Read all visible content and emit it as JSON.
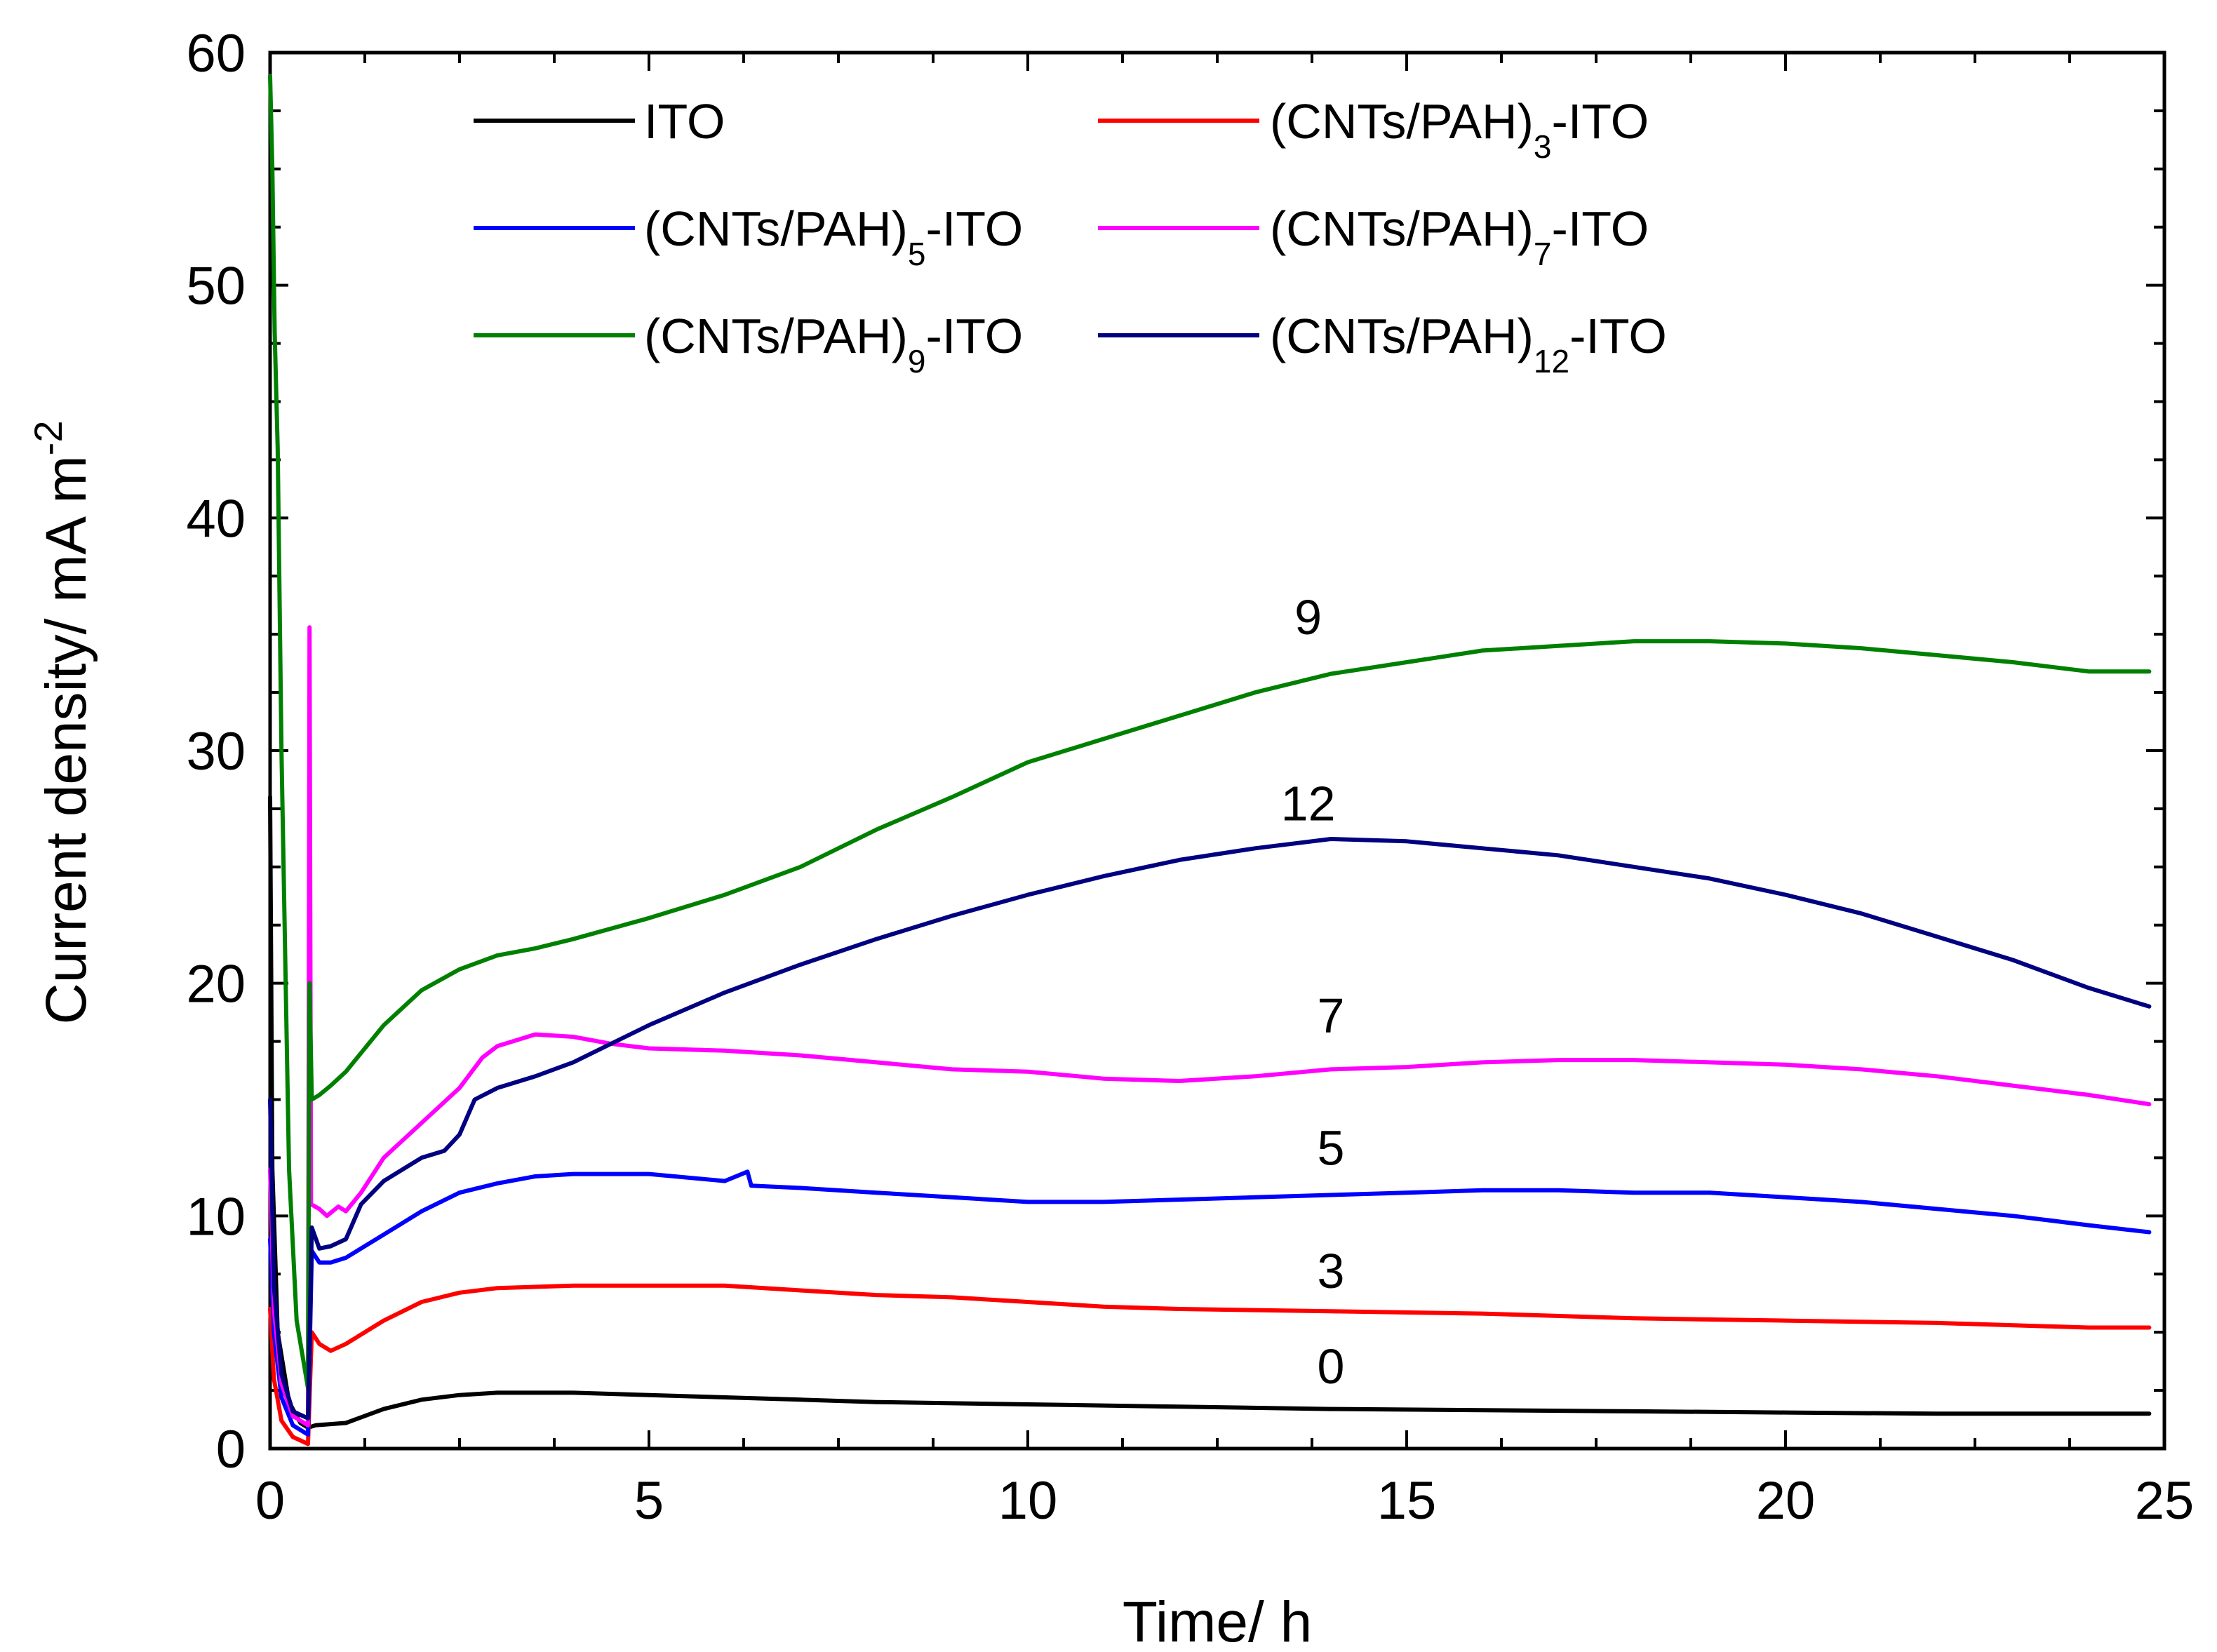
{
  "chart_data": {
    "type": "line",
    "title": "",
    "xlabel": "Time/ h",
    "ylabel": "Current density/ mA m",
    "ylabel_superscript": "-2",
    "xlim": [
      0,
      25
    ],
    "ylim": [
      0,
      60
    ],
    "xticks": [
      0,
      5,
      10,
      15,
      20,
      25
    ],
    "yticks": [
      0,
      10,
      20,
      30,
      40,
      50,
      60
    ],
    "xtick_labels": [
      "0",
      "5",
      "10",
      "15",
      "20",
      "25"
    ],
    "ytick_labels": [
      "0",
      "10",
      "20",
      "30",
      "40",
      "50",
      "60"
    ],
    "grid": false,
    "legend_position": "top, inside plot, three rows of two columns",
    "series": [
      {
        "name": "ITO",
        "legend_base": "ITO",
        "legend_sub": "",
        "legend_suffix": "",
        "color": "#000000",
        "curve_label": "0",
        "curve_label_at": [
          14,
          2.8
        ],
        "points": [
          [
            0,
            28
          ],
          [
            0.03,
            12
          ],
          [
            0.1,
            5
          ],
          [
            0.25,
            2
          ],
          [
            0.4,
            1.1
          ],
          [
            0.5,
            0.9
          ],
          [
            0.6,
            1.0
          ],
          [
            1.0,
            1.1
          ],
          [
            1.5,
            1.7
          ],
          [
            2,
            2.1
          ],
          [
            2.5,
            2.3
          ],
          [
            3,
            2.4
          ],
          [
            3.5,
            2.4
          ],
          [
            4,
            2.4
          ],
          [
            5,
            2.3
          ],
          [
            6,
            2.2
          ],
          [
            7,
            2.1
          ],
          [
            8,
            2.0
          ],
          [
            10,
            1.9
          ],
          [
            12,
            1.8
          ],
          [
            14,
            1.7
          ],
          [
            16,
            1.65
          ],
          [
            18,
            1.6
          ],
          [
            20,
            1.55
          ],
          [
            22,
            1.5
          ],
          [
            24,
            1.5
          ],
          [
            24.8,
            1.5
          ]
        ]
      },
      {
        "name": "(CNTs/PAH)3-ITO",
        "legend_base": "(CNTs/PAH)",
        "legend_sub": "3",
        "legend_suffix": "-ITO",
        "color": "#ff0000",
        "curve_label": "3",
        "curve_label_at": [
          14,
          6.9
        ],
        "points": [
          [
            0,
            6
          ],
          [
            0.05,
            3
          ],
          [
            0.15,
            1.2
          ],
          [
            0.3,
            0.5
          ],
          [
            0.5,
            0.2
          ],
          [
            0.55,
            5.0
          ],
          [
            0.65,
            4.5
          ],
          [
            0.8,
            4.2
          ],
          [
            1.0,
            4.5
          ],
          [
            1.5,
            5.5
          ],
          [
            2,
            6.3
          ],
          [
            2.5,
            6.7
          ],
          [
            3,
            6.9
          ],
          [
            4,
            7.0
          ],
          [
            5,
            7.0
          ],
          [
            6,
            7.0
          ],
          [
            7,
            6.8
          ],
          [
            8,
            6.6
          ],
          [
            9,
            6.5
          ],
          [
            10,
            6.3
          ],
          [
            11,
            6.1
          ],
          [
            12,
            6.0
          ],
          [
            14,
            5.9
          ],
          [
            16,
            5.8
          ],
          [
            18,
            5.6
          ],
          [
            20,
            5.5
          ],
          [
            22,
            5.4
          ],
          [
            24,
            5.2
          ],
          [
            24.8,
            5.2
          ]
        ]
      },
      {
        "name": "(CNTs/PAH)5-ITO",
        "legend_base": "(CNTs/PAH)",
        "legend_sub": "5",
        "legend_suffix": "-ITO",
        "color": "#0000ff",
        "curve_label": "5",
        "curve_label_at": [
          14,
          12.2
        ],
        "points": [
          [
            0,
            9
          ],
          [
            0.05,
            5
          ],
          [
            0.15,
            2.2
          ],
          [
            0.3,
            1.0
          ],
          [
            0.5,
            0.6
          ],
          [
            0.55,
            8.5
          ],
          [
            0.65,
            8.0
          ],
          [
            0.8,
            8.0
          ],
          [
            1.0,
            8.2
          ],
          [
            1.5,
            9.2
          ],
          [
            2,
            10.2
          ],
          [
            2.5,
            11.0
          ],
          [
            3,
            11.4
          ],
          [
            3.5,
            11.7
          ],
          [
            4,
            11.8
          ],
          [
            5,
            11.8
          ],
          [
            6,
            11.5
          ],
          [
            6.3,
            11.9
          ],
          [
            6.35,
            11.3
          ],
          [
            7,
            11.2
          ],
          [
            8,
            11.0
          ],
          [
            9,
            10.8
          ],
          [
            10,
            10.6
          ],
          [
            11,
            10.6
          ],
          [
            12,
            10.7
          ],
          [
            13,
            10.8
          ],
          [
            14,
            10.9
          ],
          [
            15,
            11.0
          ],
          [
            16,
            11.1
          ],
          [
            17,
            11.1
          ],
          [
            18,
            11.0
          ],
          [
            19,
            11.0
          ],
          [
            20,
            10.8
          ],
          [
            21,
            10.6
          ],
          [
            22,
            10.3
          ],
          [
            23,
            10.0
          ],
          [
            24,
            9.6
          ],
          [
            24.8,
            9.3
          ]
        ]
      },
      {
        "name": "(CNTs/PAH)7-ITO",
        "legend_base": "(CNTs/PAH)",
        "legend_sub": "7",
        "legend_suffix": "-ITO",
        "color": "#ff00ff",
        "curve_label": "7",
        "curve_label_at": [
          14,
          17.9
        ],
        "points": [
          [
            0,
            12
          ],
          [
            0.05,
            6
          ],
          [
            0.15,
            2.8
          ],
          [
            0.3,
            1.4
          ],
          [
            0.5,
            1.0
          ],
          [
            0.52,
            35.3
          ],
          [
            0.54,
            10.5
          ],
          [
            0.65,
            10.3
          ],
          [
            0.75,
            10.0
          ],
          [
            0.9,
            10.4
          ],
          [
            1.0,
            10.2
          ],
          [
            1.2,
            11.0
          ],
          [
            1.5,
            12.5
          ],
          [
            2,
            14.0
          ],
          [
            2.5,
            15.5
          ],
          [
            2.8,
            16.8
          ],
          [
            3,
            17.3
          ],
          [
            3.5,
            17.8
          ],
          [
            4,
            17.7
          ],
          [
            4.5,
            17.4
          ],
          [
            5,
            17.2
          ],
          [
            6,
            17.1
          ],
          [
            7,
            16.9
          ],
          [
            8,
            16.6
          ],
          [
            9,
            16.3
          ],
          [
            10,
            16.2
          ],
          [
            11,
            15.9
          ],
          [
            12,
            15.8
          ],
          [
            13,
            16.0
          ],
          [
            14,
            16.3
          ],
          [
            15,
            16.4
          ],
          [
            16,
            16.6
          ],
          [
            17,
            16.7
          ],
          [
            18,
            16.7
          ],
          [
            19,
            16.6
          ],
          [
            20,
            16.5
          ],
          [
            21,
            16.3
          ],
          [
            22,
            16.0
          ],
          [
            23,
            15.6
          ],
          [
            24,
            15.2
          ],
          [
            24.8,
            14.8
          ]
        ]
      },
      {
        "name": "(CNTs/PAH)9-ITO",
        "legend_base": "(CNTs/PAH)",
        "legend_sub": "9",
        "legend_suffix": "-ITO",
        "color": "#008000",
        "curve_label": "9",
        "curve_label_at": [
          13.7,
          35.0
        ],
        "points": [
          [
            0,
            59
          ],
          [
            0.03,
            55
          ],
          [
            0.06,
            48
          ],
          [
            0.1,
            43
          ],
          [
            0.15,
            30
          ],
          [
            0.25,
            12
          ],
          [
            0.35,
            5.5
          ],
          [
            0.5,
            2.6
          ],
          [
            0.52,
            20.0
          ],
          [
            0.55,
            15.0
          ],
          [
            0.65,
            15.2
          ],
          [
            0.8,
            15.6
          ],
          [
            1.0,
            16.2
          ],
          [
            1.5,
            18.2
          ],
          [
            2,
            19.7
          ],
          [
            2.5,
            20.6
          ],
          [
            3,
            21.2
          ],
          [
            3.5,
            21.5
          ],
          [
            4,
            21.9
          ],
          [
            5,
            22.8
          ],
          [
            6,
            23.8
          ],
          [
            7,
            25.0
          ],
          [
            8,
            26.6
          ],
          [
            9,
            28.0
          ],
          [
            10,
            29.5
          ],
          [
            11,
            30.5
          ],
          [
            12,
            31.5
          ],
          [
            13,
            32.5
          ],
          [
            14,
            33.3
          ],
          [
            15,
            33.8
          ],
          [
            16,
            34.3
          ],
          [
            17,
            34.5
          ],
          [
            18,
            34.7
          ],
          [
            19,
            34.7
          ],
          [
            20,
            34.6
          ],
          [
            21,
            34.4
          ],
          [
            22,
            34.1
          ],
          [
            23,
            33.8
          ],
          [
            24,
            33.4
          ],
          [
            24.8,
            33.4
          ]
        ]
      },
      {
        "name": "(CNTs/PAH)12-ITO",
        "legend_base": "(CNTs/PAH)",
        "legend_sub": "12",
        "legend_suffix": "-ITO",
        "color": "#000080",
        "curve_label": "12",
        "curve_label_at": [
          13.7,
          27.0
        ],
        "points": [
          [
            0,
            15
          ],
          [
            0.05,
            7
          ],
          [
            0.15,
            3.2
          ],
          [
            0.3,
            1.6
          ],
          [
            0.5,
            1.3
          ],
          [
            0.55,
            9.5
          ],
          [
            0.65,
            8.6
          ],
          [
            0.8,
            8.7
          ],
          [
            1.0,
            9.0
          ],
          [
            1.2,
            10.5
          ],
          [
            1.5,
            11.5
          ],
          [
            2,
            12.5
          ],
          [
            2.3,
            12.8
          ],
          [
            2.5,
            13.5
          ],
          [
            2.7,
            15.0
          ],
          [
            3,
            15.5
          ],
          [
            3.5,
            16.0
          ],
          [
            4,
            16.6
          ],
          [
            5,
            18.2
          ],
          [
            6,
            19.6
          ],
          [
            7,
            20.8
          ],
          [
            8,
            21.9
          ],
          [
            9,
            22.9
          ],
          [
            10,
            23.8
          ],
          [
            11,
            24.6
          ],
          [
            12,
            25.3
          ],
          [
            13,
            25.8
          ],
          [
            14,
            26.2
          ],
          [
            15,
            26.1
          ],
          [
            16,
            25.8
          ],
          [
            17,
            25.5
          ],
          [
            18,
            25.0
          ],
          [
            19,
            24.5
          ],
          [
            20,
            23.8
          ],
          [
            21,
            23.0
          ],
          [
            22,
            22.0
          ],
          [
            23,
            21.0
          ],
          [
            24,
            19.8
          ],
          [
            24.8,
            19.0
          ]
        ]
      }
    ]
  }
}
